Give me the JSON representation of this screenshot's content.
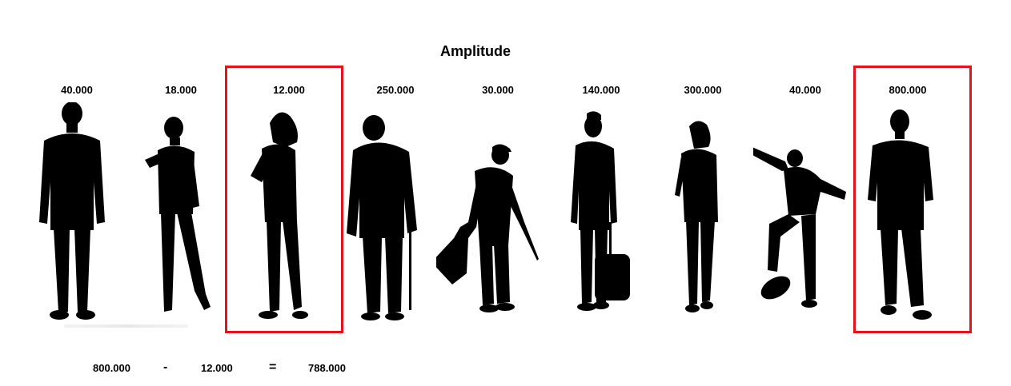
{
  "title": "Amplitude",
  "people": [
    {
      "value": "40.000",
      "pose": "man-standing",
      "highlighted": false
    },
    {
      "value": "18.000",
      "pose": "girl-posing",
      "highlighted": false
    },
    {
      "value": "12.000",
      "pose": "woman-standing",
      "highlighted": true
    },
    {
      "value": "250.000",
      "pose": "old-man-cane",
      "highlighted": false
    },
    {
      "value": "30.000",
      "pose": "worker-trash-bag",
      "highlighted": false
    },
    {
      "value": "140.000",
      "pose": "man-luggage",
      "highlighted": false
    },
    {
      "value": "300.000",
      "pose": "woman-walking",
      "highlighted": false
    },
    {
      "value": "40.000",
      "pose": "skateboarder",
      "highlighted": false
    },
    {
      "value": "800.000",
      "pose": "man-standing-bald",
      "highlighted": true
    }
  ],
  "equation": {
    "max": "800.000",
    "minus": "-",
    "min": "12.000",
    "equals": "=",
    "result": "788.000"
  },
  "colors": {
    "highlight": "#e0141e",
    "silhouette": "#000000"
  }
}
